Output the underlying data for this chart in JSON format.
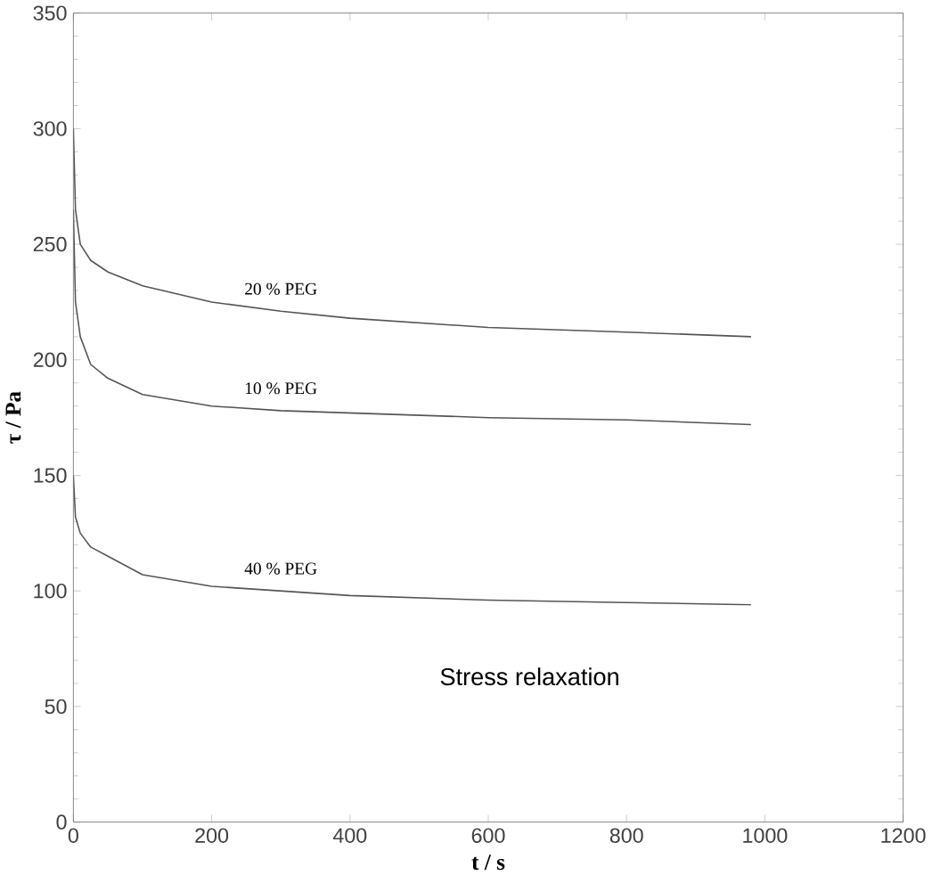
{
  "chart_data": {
    "type": "line",
    "xlabel": "t / s",
    "ylabel": "τ / Pa",
    "xlim": [
      0,
      1200
    ],
    "ylim": [
      0,
      350
    ],
    "xticks": [
      0,
      200,
      400,
      600,
      800,
      1000,
      1200
    ],
    "yticks": [
      0,
      50,
      100,
      150,
      200,
      250,
      300,
      350
    ],
    "annotations": [
      "Stress relaxation"
    ],
    "series": [
      {
        "name": "20 % PEG",
        "color": "#555555",
        "x": [
          0,
          3,
          10,
          25,
          50,
          100,
          200,
          300,
          400,
          600,
          800,
          980
        ],
        "values": [
          300,
          265,
          250,
          243,
          238,
          232,
          225,
          221,
          218,
          214,
          212,
          210
        ]
      },
      {
        "name": "10 % PEG",
        "color": "#555555",
        "x": [
          0,
          3,
          10,
          25,
          50,
          100,
          200,
          300,
          400,
          600,
          800,
          980
        ],
        "values": [
          265,
          225,
          210,
          198,
          192,
          185,
          180,
          178,
          177,
          175,
          174,
          172
        ]
      },
      {
        "name": "40 % PEG",
        "color": "#555555",
        "x": [
          0,
          3,
          10,
          25,
          50,
          100,
          200,
          300,
          400,
          600,
          800,
          980
        ],
        "values": [
          150,
          132,
          125,
          119,
          115,
          107,
          102,
          100,
          98,
          96,
          95,
          94
        ]
      }
    ]
  }
}
